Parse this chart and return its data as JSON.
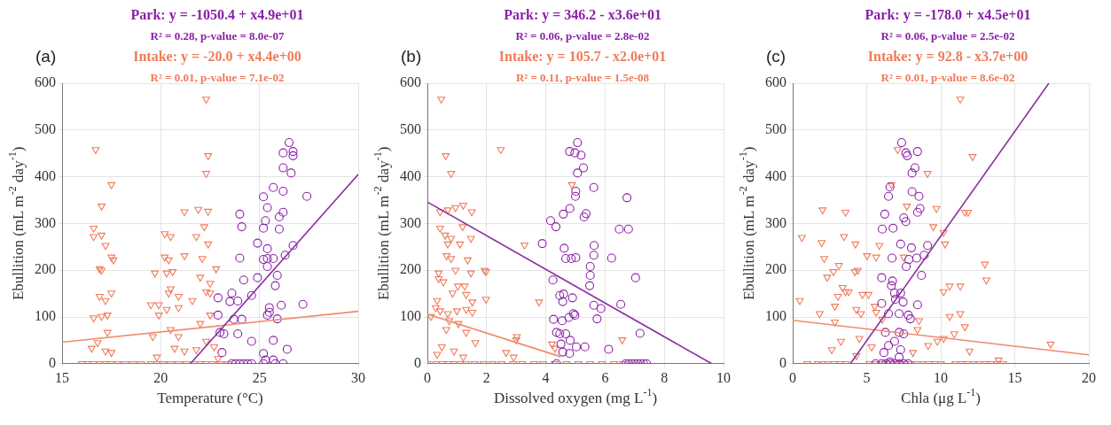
{
  "chart_data": [
    {
      "type": "scatter",
      "title": "(a)",
      "annotations": [
        "Park: y = -1050.4 + x4.9e+01",
        "R² = 0.28, p-value = 8.0e-07",
        "Intake: y = -20.0 + x4.4e+00",
        "R² = 0.01, p-value = 7.1e-02"
      ],
      "xlabel": "Temperature (°C)",
      "ylabel": "Ebullition (mL m$^{-2}$ day$^{-1}$)",
      "xlim": [
        15,
        30
      ],
      "xticks": [
        15,
        20,
        25,
        30
      ],
      "ylim": [
        0,
        600
      ],
      "yticks": [
        0,
        100,
        200,
        300,
        400,
        500,
        600
      ],
      "grid": true,
      "series": [
        {
          "type": "scatter",
          "color": "#8b1fa9",
          "marker": "circle",
          "x": [
            26.5,
            26.2,
            26.7,
            26.7,
            26.2,
            26.6,
            25.7,
            26.2,
            25.2,
            27.4,
            25.4,
            24.0,
            26.2,
            26.0,
            25.3,
            24.1,
            25.2,
            26.0,
            24.9,
            26.7,
            25.4,
            24.0,
            25.2,
            25.4,
            25.7,
            26.3,
            25.4,
            25.9,
            24.2,
            24.9,
            25.8,
            24.6,
            23.6,
            22.9,
            23.5,
            23.9,
            27.2,
            26.1,
            25.5,
            25.5,
            25.4,
            25.9,
            23.7,
            24.1,
            22.9,
            23.0,
            23.2,
            23.9,
            24.6,
            25.7,
            26.4,
            25.2,
            25.3,
            25.7,
            26.2,
            23.1,
            23.6,
            23.8,
            24.0,
            24.2,
            24.4,
            24.6,
            25.2,
            25.8
          ],
          "values": [
            473,
            451,
            454,
            445,
            419,
            408,
            377,
            369,
            357,
            358,
            334,
            320,
            324,
            314,
            306,
            293,
            290,
            288,
            258,
            253,
            246,
            226,
            223,
            225,
            225,
            232,
            208,
            189,
            179,
            184,
            167,
            146,
            151,
            141,
            133,
            134,
            127,
            125,
            120,
            110,
            104,
            96,
            95,
            95,
            104,
            67,
            64,
            64,
            48,
            50,
            31,
            22,
            8,
            8,
            0,
            24,
            0,
            0,
            0,
            0,
            0,
            0,
            0,
            0
          ]
        },
        {
          "type": "scatter",
          "color": "#ef7b5a",
          "marker": "triangle",
          "x": [
            22.3,
            16.7,
            22.4,
            22.3,
            17.5,
            17.0,
            21.2,
            21.9,
            22.4,
            16.6,
            16.6,
            17.0,
            20.2,
            20.5,
            22.2,
            21.8,
            22.4,
            17.2,
            17.5,
            17.6,
            20.2,
            20.4,
            21.2,
            22.1,
            16.9,
            17.0,
            19.7,
            20.3,
            20.6,
            22.8,
            22.0,
            22.5,
            20.5,
            20.4,
            17.5,
            16.9,
            17.2,
            19.5,
            19.9,
            20.9,
            21.6,
            22.3,
            22.5,
            16.6,
            17.0,
            17.3,
            19.9,
            20.3,
            20.9,
            22.0,
            22.5,
            17.3,
            20.5,
            19.6,
            20.9,
            16.8,
            17.2,
            17.5,
            16.5,
            19.8,
            20.7,
            21.2,
            21.8,
            22.3,
            22.7,
            22.9,
            16.0,
            16.3,
            16.6,
            16.9,
            17.2,
            17.5,
            17.8,
            18.2,
            18.6,
            19.0,
            19.5,
            19.8,
            20.1,
            20.5,
            20.9,
            21.3,
            21.7,
            22.0,
            22.3,
            22.6,
            23.0,
            23.4
          ],
          "values": [
            566,
            458,
            445,
            407,
            383,
            337,
            325,
            330,
            326,
            290,
            272,
            275,
            278,
            272,
            293,
            272,
            256,
            253,
            228,
            222,
            228,
            222,
            231,
            225,
            203,
            200,
            194,
            194,
            197,
            203,
            185,
            172,
            160,
            151,
            151,
            144,
            135,
            126,
            126,
            144,
            135,
            154,
            151,
            98,
            101,
            104,
            104,
            116,
            120,
            86,
            104,
            67,
            73,
            58,
            58,
            45,
            27,
            24,
            33,
            14,
            33,
            27,
            30,
            48,
            36,
            11,
            0,
            0,
            0,
            0,
            0,
            0,
            0,
            0,
            0,
            0,
            0,
            0,
            0,
            0,
            0,
            0,
            0,
            0,
            0,
            0,
            0,
            0
          ]
        },
        {
          "type": "line",
          "color": "#8b2fa0",
          "marker": "none",
          "x": [
            21.5,
            30
          ],
          "values": [
            0,
            405
          ]
        },
        {
          "type": "line",
          "color": "#f08a6a",
          "marker": "none",
          "x": [
            15,
            30
          ],
          "values": [
            46,
            112
          ]
        }
      ]
    },
    {
      "type": "scatter",
      "title": "(b)",
      "annotations": [
        "Park: y = 346.2 - x3.6e+01",
        "R² = 0.06, p-value = 2.8e-02",
        "Intake: y = 105.7 - x2.0e+01",
        "R² = 0.11, p-value = 1.5e-08"
      ],
      "xlabel": "Dissolved oxygen (mg L$^{-1}$)",
      "ylabel": "Ebullition (mL m$^{-2}$ day$^{-1}$)",
      "xlim": [
        0,
        10
      ],
      "xticks": [
        0,
        2,
        4,
        6,
        8,
        10
      ],
      "ylim": [
        0,
        600
      ],
      "yticks": [
        0,
        100,
        200,
        300,
        400,
        500,
        600
      ],
      "grid": true,
      "series": [
        {
          "type": "scatter",
          "color": "#8b1fa9",
          "marker": "circle",
          "x": [
            5.07,
            4.8,
            4.98,
            5.19,
            5.27,
            5.07,
            5.62,
            5.01,
            5.0,
            6.74,
            4.81,
            4.59,
            5.36,
            5.29,
            4.16,
            4.34,
            6.48,
            6.79,
            3.88,
            5.63,
            4.62,
            5.62,
            4.67,
            4.86,
            5.01,
            6.22,
            5.5,
            5.5,
            5.48,
            4.24,
            7.03,
            4.47,
            4.6,
            4.57,
            4.9,
            5.62,
            5.86,
            6.53,
            5.73,
            4.26,
            4.55,
            4.78,
            4.98,
            4.93,
            4.36,
            4.47,
            4.67,
            4.82,
            7.18,
            4.51,
            5.03,
            5.32,
            6.12,
            4.57,
            4.8,
            4.36,
            6.7,
            6.8,
            6.9,
            7.0,
            7.1,
            7.2,
            7.3,
            7.4
          ],
          "values": [
            473,
            454,
            451,
            446,
            419,
            408,
            377,
            369,
            358,
            355,
            332,
            320,
            321,
            314,
            306,
            293,
            288,
            288,
            257,
            253,
            247,
            232,
            225,
            225,
            227,
            226,
            208,
            189,
            167,
            179,
            184,
            146,
            149,
            133,
            141,
            125,
            118,
            127,
            96,
            95,
            92,
            99,
            104,
            107,
            67,
            64,
            64,
            50,
            65,
            42,
            36,
            36,
            31,
            25,
            22,
            0,
            0,
            0,
            0,
            0,
            0,
            0,
            0,
            0
          ]
        },
        {
          "type": "scatter",
          "color": "#ef7b5a",
          "marker": "triangle",
          "x": [
            0.47,
            2.48,
            0.62,
            0.8,
            4.88,
            1.21,
            0.95,
            0.69,
            0.43,
            1.5,
            3.28,
            1.19,
            0.43,
            0.6,
            0.8,
            1.47,
            0.69,
            1.1,
            0.65,
            0.8,
            1.36,
            1.93,
            1.98,
            0.38,
            0.95,
            1.47,
            0.38,
            0.54,
            1.03,
            1.26,
            1.98,
            3.77,
            0.33,
            0.85,
            1.31,
            1.52,
            0.28,
            0.43,
            0.69,
            1.0,
            1.31,
            1.52,
            0.12,
            0.74,
            1.05,
            0.64,
            1.31,
            3.02,
            3.0,
            6.58,
            4.21,
            1.62,
            0.49,
            0.9,
            2.66,
            2.91,
            4.31,
            1.21,
            0.33,
            0.0,
            0.3,
            0.5,
            0.7,
            0.9,
            1.1,
            1.3,
            1.6,
            1.9,
            2.2,
            2.5,
            2.9,
            3.2,
            3.6,
            3.9,
            4.3,
            4.7,
            5.1,
            5.5,
            5.9,
            6.3,
            6.6
          ],
          "values": [
            566,
            458,
            445,
            407,
            383,
            339,
            334,
            329,
            325,
            325,
            254,
            293,
            290,
            275,
            268,
            268,
            256,
            256,
            231,
            225,
            222,
            200,
            197,
            194,
            200,
            194,
            182,
            175,
            166,
            166,
            138,
            132,
            135,
            151,
            148,
            132,
            120,
            113,
            107,
            113,
            116,
            110,
            101,
            92,
            86,
            73,
            67,
            58,
            51,
            51,
            42,
            45,
            36,
            27,
            24,
            14,
            33,
            14,
            20,
            0,
            0,
            0,
            0,
            0,
            0,
            0,
            0,
            0,
            0,
            0,
            0,
            0,
            0,
            0,
            0,
            0,
            0,
            0,
            0,
            0,
            0
          ]
        },
        {
          "type": "line",
          "color": "#8b2fa0",
          "marker": "none",
          "x": [
            0,
            9.6
          ],
          "values": [
            346,
            0
          ]
        },
        {
          "type": "line",
          "color": "#f08a6a",
          "marker": "none",
          "x": [
            0,
            4.5
          ],
          "values": [
            106,
            15
          ]
        }
      ]
    },
    {
      "type": "scatter",
      "title": "(c)",
      "annotations": [
        "Park: y = -178.0 + x4.5e+01",
        "R² = 0.06, p-value = 2.5e-02",
        "Intake: y = 92.8 - x3.7e+00",
        "R² = 0.01, p-value = 8.6e-02"
      ],
      "xlabel": "Chla (μg L$^{-1}$)",
      "ylabel": "Ebullition (mL m$^{-2}$ day$^{-1}$)",
      "xlim": [
        0,
        20
      ],
      "xticks": [
        0,
        5,
        10,
        15,
        20
      ],
      "ylim": [
        0,
        600
      ],
      "yticks": [
        0,
        100,
        200,
        300,
        400,
        500,
        600
      ],
      "grid": true,
      "series": [
        {
          "type": "scatter",
          "color": "#8b1fa9",
          "marker": "circle",
          "x": [
            7.36,
            7.64,
            7.74,
            8.43,
            8.26,
            8.06,
            6.57,
            6.47,
            8.06,
            8.53,
            8.6,
            8.43,
            7.5,
            7.64,
            6.22,
            6.05,
            6.78,
            7.29,
            8.02,
            9.11,
            8.88,
            6.71,
            7.85,
            7.67,
            8.37,
            8.7,
            6.01,
            6.74,
            6.67,
            6.88,
            7.29,
            7.46,
            6.94,
            8.43,
            6.01,
            7.81,
            7.95,
            6.47,
            7.19,
            6.26,
            7.19,
            7.5,
            6.88,
            6.47,
            6.16,
            7.29,
            7.19,
            6.57,
            5.6,
            6.0,
            6.3,
            6.6,
            6.9,
            7.2,
            7.5,
            7.8
          ],
          "values": [
            473,
            451,
            445,
            454,
            419,
            408,
            378,
            358,
            368,
            358,
            332,
            324,
            312,
            304,
            320,
            288,
            290,
            256,
            248,
            253,
            232,
            226,
            223,
            208,
            226,
            189,
            184,
            177,
            167,
            151,
            151,
            132,
            138,
            126,
            129,
            104,
            96,
            107,
            107,
            67,
            67,
            64,
            48,
            39,
            24,
            30,
            14,
            4,
            0,
            0,
            0,
            0,
            0,
            0,
            0,
            0
          ]
        },
        {
          "type": "scatter",
          "color": "#ef7b5a",
          "marker": "triangle",
          "x": [
            11.32,
            7.09,
            12.15,
            9.11,
            6.67,
            2.02,
            3.57,
            7.71,
            9.71,
            11.63,
            11.84,
            0.62,
            1.96,
            3.47,
            4.24,
            5.85,
            9.5,
            10.19,
            10.29,
            2.13,
            5.02,
            5.64,
            7.5,
            12.98,
            13.08,
            2.33,
            3.12,
            2.75,
            4.2,
            4.4,
            0.48,
            1.82,
            3.37,
            3.57,
            3.06,
            2.85,
            2.85,
            3.78,
            4.71,
            5.12,
            4.3,
            4.61,
            5.54,
            5.64,
            6.05,
            10.6,
            11.32,
            10.19,
            10.6,
            11.32,
            11.63,
            10.91,
            10.19,
            9.77,
            17.42,
            8.53,
            8.43,
            4.5,
            3.26,
            2.64,
            11.94,
            9.15,
            4.3,
            13.9,
            5.33,
            8.12,
            1.0,
            1.7,
            2.0,
            2.4,
            2.8,
            3.2,
            3.6,
            5.2,
            5.6,
            6.0,
            6.4,
            6.8,
            7.2,
            7.6,
            8.0,
            8.4,
            8.8,
            9.2,
            9.6,
            10.0,
            11.0,
            11.4,
            11.8,
            12.2,
            12.6,
            13.0,
            13.4,
            13.8,
            14.2
          ],
          "values": [
            566,
            458,
            443,
            407,
            383,
            329,
            324,
            337,
            332,
            324,
            324,
            270,
            259,
            272,
            256,
            253,
            293,
            281,
            256,
            225,
            231,
            228,
            228,
            213,
            179,
            185,
            210,
            197,
            197,
            200,
            135,
            107,
            163,
            154,
            144,
            123,
            89,
            154,
            148,
            148,
            116,
            107,
            123,
            110,
            95,
            166,
            166,
            154,
            101,
            107,
            79,
            64,
            54,
            48,
            42,
            92,
            73,
            54,
            48,
            30,
            27,
            39,
            17,
            8,
            36,
            24,
            0,
            0,
            0,
            0,
            0,
            0,
            0,
            0,
            0,
            0,
            0,
            0,
            0,
            0,
            0,
            0,
            0,
            0,
            0,
            0,
            0,
            0,
            0,
            0,
            0,
            0,
            0,
            0,
            0
          ]
        },
        {
          "type": "line",
          "color": "#8b2fa0",
          "marker": "none",
          "x": [
            3.9,
            17.3
          ],
          "values": [
            0,
            600
          ]
        },
        {
          "type": "line",
          "color": "#f08a6a",
          "marker": "none",
          "x": [
            0,
            20
          ],
          "values": [
            93,
            19
          ]
        }
      ]
    }
  ]
}
